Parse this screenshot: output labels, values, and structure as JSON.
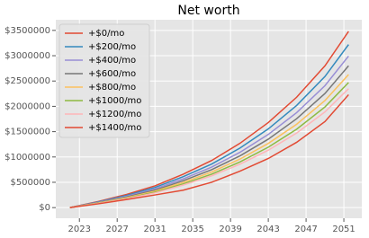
{
  "chart_data": {
    "type": "line",
    "title": "Net worth",
    "x": [
      2022,
      2025,
      2028,
      2031,
      2034,
      2037,
      2040,
      2043,
      2046,
      2049,
      2051.5
    ],
    "series": [
      {
        "name": "+$0/mo",
        "color": "#E24A33",
        "values": [
          0,
          120000,
          260000,
          430000,
          660000,
          930000,
          1270000,
          1680000,
          2180000,
          2800000,
          3480000
        ]
      },
      {
        "name": "+$200/mo",
        "color": "#348ABD",
        "values": [
          0,
          111000,
          240000,
          398000,
          611000,
          860000,
          1175000,
          1554000,
          2017000,
          2590000,
          3220000
        ]
      },
      {
        "name": "+$400/mo",
        "color": "#988ED5",
        "values": [
          0,
          103000,
          224000,
          370000,
          568000,
          800000,
          1092000,
          1445000,
          1875000,
          2408000,
          2993000
        ]
      },
      {
        "name": "+$600/mo",
        "color": "#777777",
        "values": [
          0,
          97000,
          209000,
          346000,
          531000,
          749000,
          1022000,
          1352000,
          1755000,
          2254000,
          2801000
        ]
      },
      {
        "name": "+$800/mo",
        "color": "#FBC15E",
        "values": [
          0,
          91000,
          196000,
          325000,
          498000,
          702000,
          959000,
          1268000,
          1646000,
          2114000,
          2627000
        ]
      },
      {
        "name": "+$1000/mo",
        "color": "#8EBA42",
        "values": [
          0,
          85000,
          185000,
          305000,
          469000,
          660000,
          902000,
          1193000,
          1548000,
          1988000,
          2471000
        ]
      },
      {
        "name": "+$1200/mo",
        "color": "#FFB5B8",
        "values": [
          0,
          81000,
          176000,
          290000,
          446000,
          628000,
          857000,
          1134000,
          1472000,
          1890000,
          2349000
        ]
      },
      {
        "name": "+$1400/mo",
        "color": "#E24A33",
        "values": [
          0,
          75000,
          160000,
          250000,
          345000,
          500000,
          720000,
          970000,
          1290000,
          1700000,
          2230000
        ]
      }
    ],
    "xlim": [
      2020.5,
      2052.9
    ],
    "xticks": [
      2023,
      2027,
      2031,
      2035,
      2039,
      2043,
      2047,
      2051
    ],
    "ylim": [
      -210000,
      3710000
    ],
    "yticks": [
      {
        "value": 0,
        "label": "$0"
      },
      {
        "value": 500000,
        "label": "$500000"
      },
      {
        "value": 1000000,
        "label": "$1000000"
      },
      {
        "value": 1500000,
        "label": "$1500000"
      },
      {
        "value": 2000000,
        "label": "$2000000"
      },
      {
        "value": 2500000,
        "label": "$2500000"
      },
      {
        "value": 3000000,
        "label": "$3000000"
      },
      {
        "value": 3500000,
        "label": "$3500000"
      }
    ],
    "grid": true,
    "legend": "upper left"
  }
}
